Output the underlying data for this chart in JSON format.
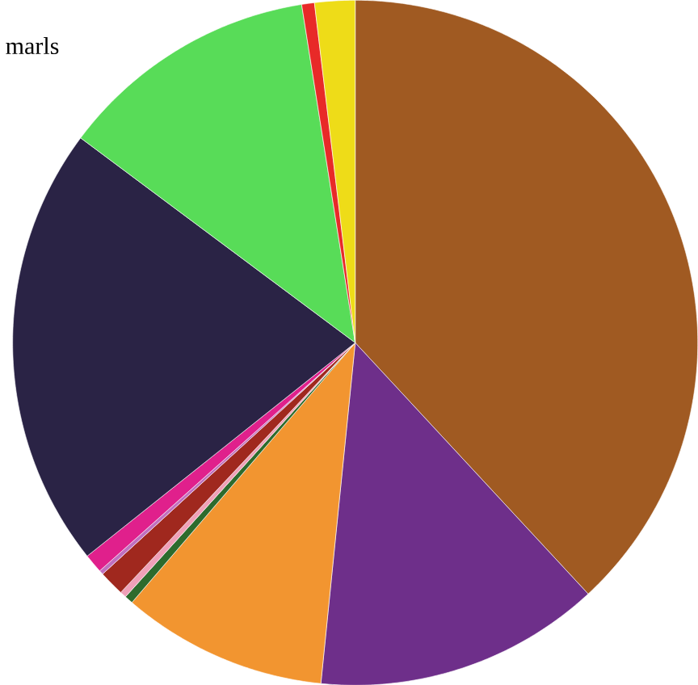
{
  "chart_data": {
    "type": "pie",
    "title": "marls",
    "categories": [
      null,
      null,
      null,
      null,
      null,
      null,
      null,
      null,
      null,
      null,
      null,
      null
    ],
    "values": [
      38.1,
      13.5,
      9.7,
      0.4,
      0.3,
      1.2,
      0.2,
      0.9,
      20.9,
      12.3,
      0.6,
      1.9
    ],
    "colors": [
      "#a05a22",
      "#6e2f8a",
      "#f29530",
      "#2d6b2d",
      "#f0a0b8",
      "#a0281e",
      "#c070c0",
      "#e0208c",
      "#2a2345",
      "#58dc58",
      "#e82a28",
      "#eedc18"
    ]
  }
}
